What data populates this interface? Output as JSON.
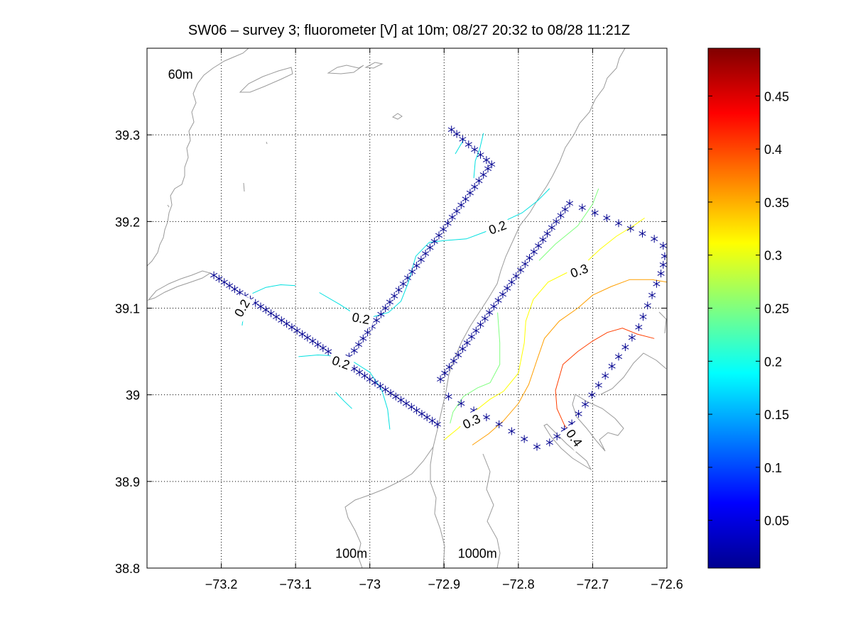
{
  "chart_data": {
    "type": "contour-map",
    "title": "SW06 – survey 3; fluorometer [V] at 10m; 08/27 20:32 to 08/28 11:21Z",
    "xlim": [
      -73.3,
      -72.6
    ],
    "ylim": [
      38.8,
      39.4
    ],
    "grid": true,
    "x_ticks": [
      -73.2,
      -73.1,
      -73.0,
      -72.9,
      -72.8,
      -72.7,
      -72.6
    ],
    "x_tick_labels": [
      "−73.2",
      "−73.1",
      "−73",
      "−72.9",
      "−72.8",
      "−72.7",
      "−72.6"
    ],
    "y_ticks": [
      38.8,
      38.9,
      39.0,
      39.1,
      39.2,
      39.3
    ],
    "y_tick_labels": [
      "38.8",
      "38.9",
      "39",
      "39.1",
      "39.2",
      "39.3"
    ],
    "depth_labels": [
      {
        "text": "60m",
        "lon": -73.255,
        "lat": 39.365
      },
      {
        "text": "100m",
        "lon": -73.025,
        "lat": 38.812
      },
      {
        "text": "1000m",
        "lon": -72.855,
        "lat": 38.812
      }
    ],
    "colorbar": {
      "range": [
        0.005,
        0.495
      ],
      "ticks": [
        0.05,
        0.1,
        0.15,
        0.2,
        0.25,
        0.3,
        0.35,
        0.4,
        0.45
      ],
      "tick_labels": [
        "0.05",
        "0.1",
        "0.15",
        "0.2",
        "0.25",
        "0.3",
        "0.35",
        "0.4",
        "0.45"
      ],
      "colormap": "jet"
    },
    "marker_color": "#00008f",
    "contour_colors": {
      "0.2": "#00e0e0",
      "0.25": "#80ff7f",
      "0.3": "#ffff00",
      "0.35": "#ff9f00",
      "0.4": "#ff3f00",
      "0.45": "#bf0000"
    },
    "contour_labels": [
      {
        "text": "0.2",
        "lon": -73.172,
        "lat": 39.1,
        "angle": -60
      },
      {
        "text": "0.2",
        "lon": -73.012,
        "lat": 39.088,
        "angle": 10
      },
      {
        "text": "0.2",
        "lon": -73.039,
        "lat": 39.037,
        "angle": 20
      },
      {
        "text": "0.2",
        "lon": -72.828,
        "lat": 39.193,
        "angle": -20
      },
      {
        "text": "0.3",
        "lon": -72.718,
        "lat": 39.143,
        "angle": -20
      },
      {
        "text": "0.3",
        "lon": -72.863,
        "lat": 38.969,
        "angle": -25
      },
      {
        "text": "0.4",
        "lon": -72.725,
        "lat": 38.95,
        "angle": 55
      }
    ],
    "contours": [
      {
        "level": 0.2,
        "points": [
          [
            -73.158,
            39.117
          ],
          [
            -73.14,
            39.124
          ],
          [
            -73.12,
            39.127
          ],
          [
            -73.1,
            39.126
          ]
        ]
      },
      {
        "level": 0.2,
        "points": [
          [
            -73.172,
            39.08
          ],
          [
            -73.17,
            39.092
          ],
          [
            -73.16,
            39.108
          ]
        ]
      },
      {
        "level": 0.2,
        "points": [
          [
            -73.068,
            39.118
          ],
          [
            -73.04,
            39.104
          ],
          [
            -73.02,
            39.093
          ],
          [
            -73.0,
            39.089
          ],
          [
            -72.975,
            39.095
          ],
          [
            -72.958,
            39.108
          ],
          [
            -72.948,
            39.13
          ],
          [
            -72.938,
            39.16
          ],
          [
            -72.92,
            39.176
          ],
          [
            -72.9,
            39.178
          ],
          [
            -72.87,
            39.18
          ],
          [
            -72.845,
            39.188
          ],
          [
            -72.82,
            39.2
          ],
          [
            -72.795,
            39.21
          ],
          [
            -72.774,
            39.224
          ],
          [
            -72.758,
            39.238
          ]
        ]
      },
      {
        "level": 0.2,
        "points": [
          [
            -73.096,
            39.044
          ],
          [
            -73.07,
            39.046
          ],
          [
            -73.045,
            39.045
          ],
          [
            -73.022,
            39.038
          ],
          [
            -73.0,
            39.026
          ],
          [
            -72.984,
            39.006
          ],
          [
            -72.976,
            38.983
          ],
          [
            -72.973,
            38.96
          ]
        ]
      },
      {
        "level": 0.2,
        "points": [
          [
            -73.046,
            39.003
          ],
          [
            -73.035,
            38.993
          ],
          [
            -73.024,
            38.984
          ]
        ]
      },
      {
        "level": 0.2,
        "points": [
          [
            -72.885,
            39.278
          ],
          [
            -72.874,
            39.294
          ]
        ]
      },
      {
        "level": 0.2,
        "points": [
          [
            -72.86,
            39.25
          ],
          [
            -72.858,
            39.27
          ],
          [
            -72.852,
            39.284
          ],
          [
            -72.847,
            39.302
          ]
        ]
      },
      {
        "level": 0.25,
        "points": [
          [
            -72.892,
            38.967
          ],
          [
            -72.888,
            38.98
          ],
          [
            -72.874,
            38.998
          ],
          [
            -72.855,
            39.008
          ],
          [
            -72.838,
            39.014
          ],
          [
            -72.825,
            39.035
          ],
          [
            -72.825,
            39.06
          ],
          [
            -72.828,
            39.095
          ]
        ]
      },
      {
        "level": 0.25,
        "points": [
          [
            -72.772,
            39.155
          ],
          [
            -72.75,
            39.174
          ],
          [
            -72.72,
            39.195
          ],
          [
            -72.7,
            39.22
          ],
          [
            -72.692,
            39.238
          ]
        ]
      },
      {
        "level": 0.3,
        "points": [
          [
            -72.9,
            38.948
          ],
          [
            -72.88,
            38.962
          ],
          [
            -72.86,
            38.98
          ],
          [
            -72.838,
            38.995
          ],
          [
            -72.82,
            39.004
          ],
          [
            -72.8,
            39.025
          ],
          [
            -72.792,
            39.06
          ],
          [
            -72.79,
            39.085
          ],
          [
            -72.78,
            39.11
          ],
          [
            -72.76,
            39.13
          ],
          [
            -72.73,
            39.143
          ],
          [
            -72.71,
            39.152
          ],
          [
            -72.69,
            39.168
          ],
          [
            -72.668,
            39.183
          ],
          [
            -72.645,
            39.195
          ],
          [
            -72.63,
            39.204
          ]
        ]
      },
      {
        "level": 0.35,
        "points": [
          [
            -72.862,
            38.942
          ],
          [
            -72.84,
            38.955
          ],
          [
            -72.82,
            38.97
          ],
          [
            -72.8,
            38.99
          ],
          [
            -72.786,
            39.012
          ],
          [
            -72.775,
            39.04
          ],
          [
            -72.765,
            39.065
          ],
          [
            -72.745,
            39.085
          ],
          [
            -72.72,
            39.1
          ],
          [
            -72.7,
            39.115
          ],
          [
            -72.675,
            39.125
          ],
          [
            -72.65,
            39.133
          ],
          [
            -72.62,
            39.133
          ],
          [
            -72.6,
            39.13
          ]
        ]
      },
      {
        "level": 0.4,
        "points": [
          [
            -72.718,
            38.942
          ],
          [
            -72.738,
            38.965
          ],
          [
            -72.748,
            38.984
          ],
          [
            -72.75,
            39.005
          ],
          [
            -72.74,
            39.035
          ],
          [
            -72.72,
            39.05
          ],
          [
            -72.7,
            39.062
          ],
          [
            -72.68,
            39.072
          ],
          [
            -72.66,
            39.077
          ],
          [
            -72.64,
            39.07
          ],
          [
            -72.617,
            39.065
          ]
        ]
      }
    ],
    "series": [
      {
        "name": "stations",
        "points": [
          [
            -73.21,
            39.138
          ],
          [
            -73.203,
            39.134
          ],
          [
            -73.196,
            39.13
          ],
          [
            -73.189,
            39.126
          ],
          [
            -73.182,
            39.122
          ],
          [
            -73.175,
            39.118
          ],
          [
            -73.168,
            39.114
          ],
          [
            -73.161,
            39.11
          ],
          [
            -73.154,
            39.106
          ],
          [
            -73.147,
            39.102
          ],
          [
            -73.14,
            39.098
          ],
          [
            -73.133,
            39.094
          ],
          [
            -73.126,
            39.09
          ],
          [
            -73.119,
            39.086
          ],
          [
            -73.112,
            39.082
          ],
          [
            -73.105,
            39.078
          ],
          [
            -73.098,
            39.074
          ],
          [
            -73.091,
            39.07
          ],
          [
            -73.084,
            39.066
          ],
          [
            -73.077,
            39.062
          ],
          [
            -73.07,
            39.058
          ],
          [
            -73.063,
            39.054
          ],
          [
            -73.056,
            39.05
          ],
          [
            -73.049,
            39.046
          ],
          [
            -73.042,
            39.042
          ],
          [
            -73.035,
            39.038
          ],
          [
            -73.028,
            39.034
          ],
          [
            -73.021,
            39.03
          ],
          [
            -73.014,
            39.026
          ],
          [
            -73.007,
            39.022
          ],
          [
            -73.0,
            39.018
          ],
          [
            -72.993,
            39.014
          ],
          [
            -72.986,
            39.01
          ],
          [
            -72.979,
            39.006
          ],
          [
            -72.972,
            39.002
          ],
          [
            -72.965,
            38.998
          ],
          [
            -72.958,
            38.994
          ],
          [
            -72.951,
            38.99
          ],
          [
            -72.944,
            38.986
          ],
          [
            -72.937,
            38.982
          ],
          [
            -72.93,
            38.978
          ],
          [
            -72.923,
            38.974
          ],
          [
            -72.916,
            38.97
          ],
          [
            -72.909,
            38.966
          ],
          [
            -73.028,
            39.044
          ],
          [
            -73.021,
            39.051
          ],
          [
            -73.015,
            39.058
          ],
          [
            -73.009,
            39.065
          ],
          [
            -73.003,
            39.072
          ],
          [
            -72.997,
            39.079
          ],
          [
            -72.991,
            39.086
          ],
          [
            -72.985,
            39.093
          ],
          [
            -72.979,
            39.1
          ],
          [
            -72.973,
            39.107
          ],
          [
            -72.967,
            39.114
          ],
          [
            -72.961,
            39.121
          ],
          [
            -72.955,
            39.128
          ],
          [
            -72.949,
            39.135
          ],
          [
            -72.943,
            39.142
          ],
          [
            -72.937,
            39.149
          ],
          [
            -72.931,
            39.156
          ],
          [
            -72.925,
            39.163
          ],
          [
            -72.919,
            39.17
          ],
          [
            -72.913,
            39.177
          ],
          [
            -72.907,
            39.184
          ],
          [
            -72.901,
            39.191
          ],
          [
            -72.895,
            39.198
          ],
          [
            -72.889,
            39.205
          ],
          [
            -72.883,
            39.212
          ],
          [
            -72.877,
            39.219
          ],
          [
            -72.871,
            39.226
          ],
          [
            -72.865,
            39.233
          ],
          [
            -72.859,
            39.24
          ],
          [
            -72.853,
            39.247
          ],
          [
            -72.847,
            39.254
          ],
          [
            -72.841,
            39.261
          ],
          [
            -72.836,
            39.266
          ],
          [
            -72.843,
            39.271
          ],
          [
            -72.851,
            39.277
          ],
          [
            -72.859,
            39.283
          ],
          [
            -72.867,
            39.289
          ],
          [
            -72.875,
            39.295
          ],
          [
            -72.883,
            39.301
          ],
          [
            -72.89,
            39.306
          ],
          [
            -72.905,
            39.018
          ],
          [
            -72.899,
            39.025
          ],
          [
            -72.893,
            39.032
          ],
          [
            -72.887,
            39.039
          ],
          [
            -72.881,
            39.046
          ],
          [
            -72.875,
            39.053
          ],
          [
            -72.869,
            39.06
          ],
          [
            -72.863,
            39.067
          ],
          [
            -72.857,
            39.074
          ],
          [
            -72.851,
            39.081
          ],
          [
            -72.845,
            39.088
          ],
          [
            -72.839,
            39.095
          ],
          [
            -72.833,
            39.102
          ],
          [
            -72.827,
            39.109
          ],
          [
            -72.821,
            39.116
          ],
          [
            -72.815,
            39.123
          ],
          [
            -72.809,
            39.13
          ],
          [
            -72.803,
            39.137
          ],
          [
            -72.797,
            39.144
          ],
          [
            -72.791,
            39.151
          ],
          [
            -72.785,
            39.158
          ],
          [
            -72.779,
            39.165
          ],
          [
            -72.773,
            39.172
          ],
          [
            -72.767,
            39.179
          ],
          [
            -72.761,
            39.186
          ],
          [
            -72.755,
            39.193
          ],
          [
            -72.749,
            39.2
          ],
          [
            -72.743,
            39.207
          ],
          [
            -72.737,
            39.214
          ],
          [
            -72.731,
            39.221
          ],
          [
            -72.714,
            39.216
          ],
          [
            -72.697,
            39.21
          ],
          [
            -72.681,
            39.204
          ],
          [
            -72.665,
            39.198
          ],
          [
            -72.649,
            39.192
          ],
          [
            -72.633,
            39.186
          ],
          [
            -72.617,
            39.18
          ],
          [
            -72.605,
            39.172
          ],
          [
            -72.603,
            39.16
          ],
          [
            -72.605,
            39.15
          ],
          [
            -72.608,
            39.14
          ],
          [
            -72.614,
            39.128
          ],
          [
            -72.62,
            39.115
          ],
          [
            -72.626,
            39.103
          ],
          [
            -72.632,
            39.09
          ],
          [
            -72.638,
            39.078
          ],
          [
            -72.647,
            39.066
          ],
          [
            -72.656,
            39.055
          ],
          [
            -72.665,
            39.044
          ],
          [
            -72.674,
            39.033
          ],
          [
            -72.683,
            39.022
          ],
          [
            -72.692,
            39.011
          ],
          [
            -72.701,
            39.0
          ],
          [
            -72.71,
            38.989
          ],
          [
            -72.719,
            38.978
          ],
          [
            -72.728,
            38.967
          ],
          [
            -72.738,
            38.96
          ],
          [
            -72.748,
            38.952
          ],
          [
            -72.758,
            38.945
          ],
          [
            -72.775,
            38.94
          ],
          [
            -72.792,
            38.949
          ],
          [
            -72.809,
            38.958
          ],
          [
            -72.826,
            38.966
          ],
          [
            -72.843,
            38.974
          ],
          [
            -72.86,
            38.982
          ],
          [
            -72.877,
            38.99
          ],
          [
            -72.894,
            38.998
          ]
        ]
      }
    ]
  }
}
